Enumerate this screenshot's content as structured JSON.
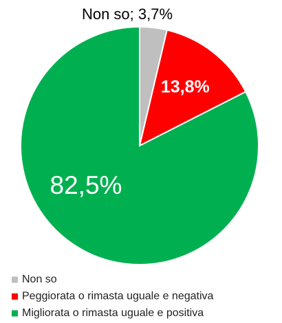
{
  "chart_data": {
    "type": "pie",
    "categories": [
      "Non so",
      "Peggiorata o rimasta uguale e negativa",
      "Migliorata o rimasta uguale e positiva"
    ],
    "values": [
      3.7,
      13.8,
      82.5
    ],
    "value_labels": [
      "Non so; 3,7%",
      "13,8%",
      "82,5%"
    ],
    "colors": [
      "#bfbfbf",
      "#ff0000",
      "#00b050"
    ]
  }
}
